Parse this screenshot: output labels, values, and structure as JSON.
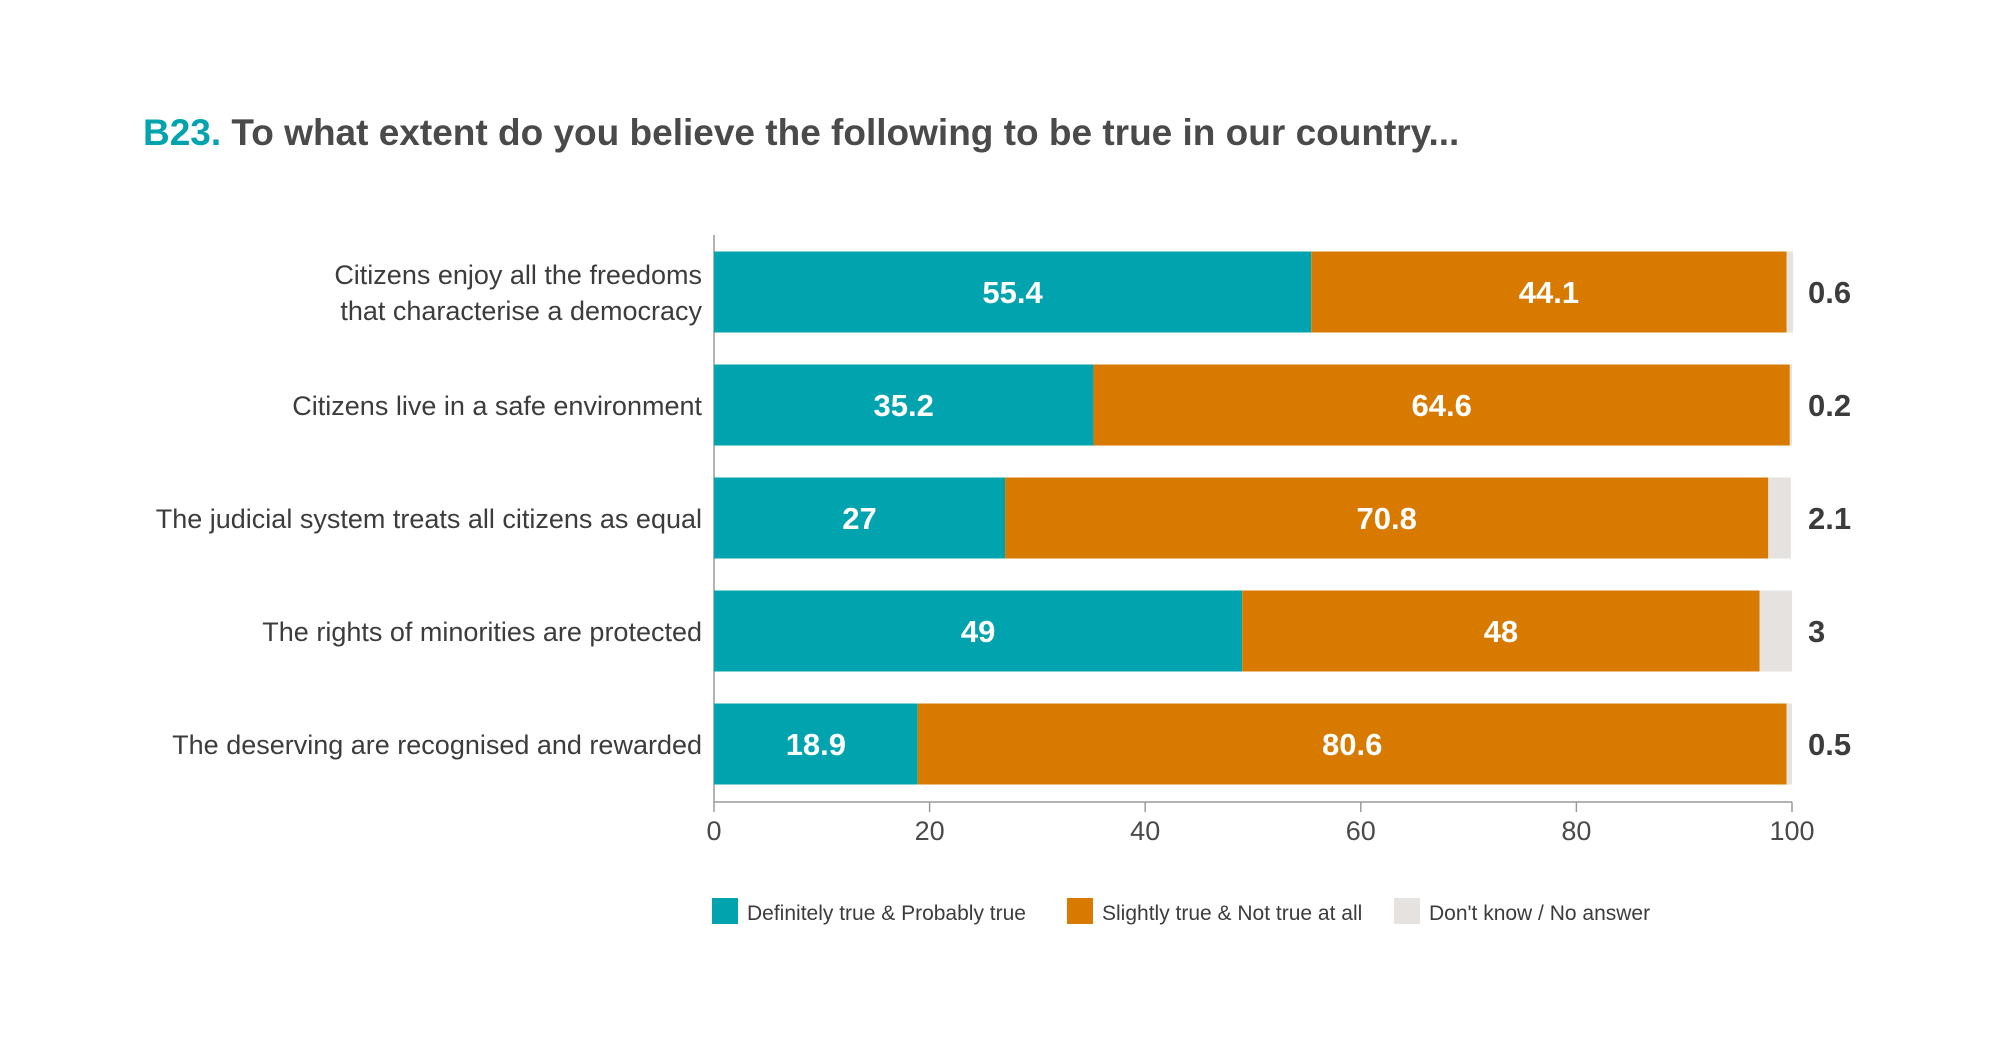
{
  "title": {
    "code": "B23.",
    "text": " To what extent do you believe the following to be true in our country..."
  },
  "chart_data": {
    "type": "bar",
    "orientation": "horizontal",
    "stacked": true,
    "categories": [
      [
        "Citizens enjoy all the freedoms",
        "that characterise a democracy"
      ],
      [
        "Citizens live in a safe environment"
      ],
      [
        "The judicial system treats all citizens as equal"
      ],
      [
        "The rights of minorities are protected"
      ],
      [
        "The deserving are recognised and rewarded"
      ]
    ],
    "series": [
      {
        "name": "Definitely true & Probably true",
        "color": "#00a3ae",
        "values": [
          55.4,
          35.2,
          27,
          49,
          18.9
        ]
      },
      {
        "name": "Slightly true & Not true at all",
        "color": "#d87a00",
        "values": [
          44.1,
          64.6,
          70.8,
          48,
          80.6
        ]
      },
      {
        "name": "Don't know / No answer",
        "color": "#e6e2df",
        "values": [
          0.6,
          0.2,
          2.1,
          3,
          0.5
        ]
      }
    ],
    "value_labels": [
      [
        "55.4",
        "35.2",
        "27",
        "49",
        "18.9"
      ],
      [
        "44.1",
        "64.6",
        "70.8",
        "48",
        "80.6"
      ],
      [
        "0.6",
        "0.2",
        "2.1",
        "3",
        "0.5"
      ]
    ],
    "xlim": [
      0,
      100
    ],
    "xticks": [
      0,
      20,
      40,
      60,
      80,
      100
    ],
    "legend_position": "bottom",
    "grid": false
  }
}
